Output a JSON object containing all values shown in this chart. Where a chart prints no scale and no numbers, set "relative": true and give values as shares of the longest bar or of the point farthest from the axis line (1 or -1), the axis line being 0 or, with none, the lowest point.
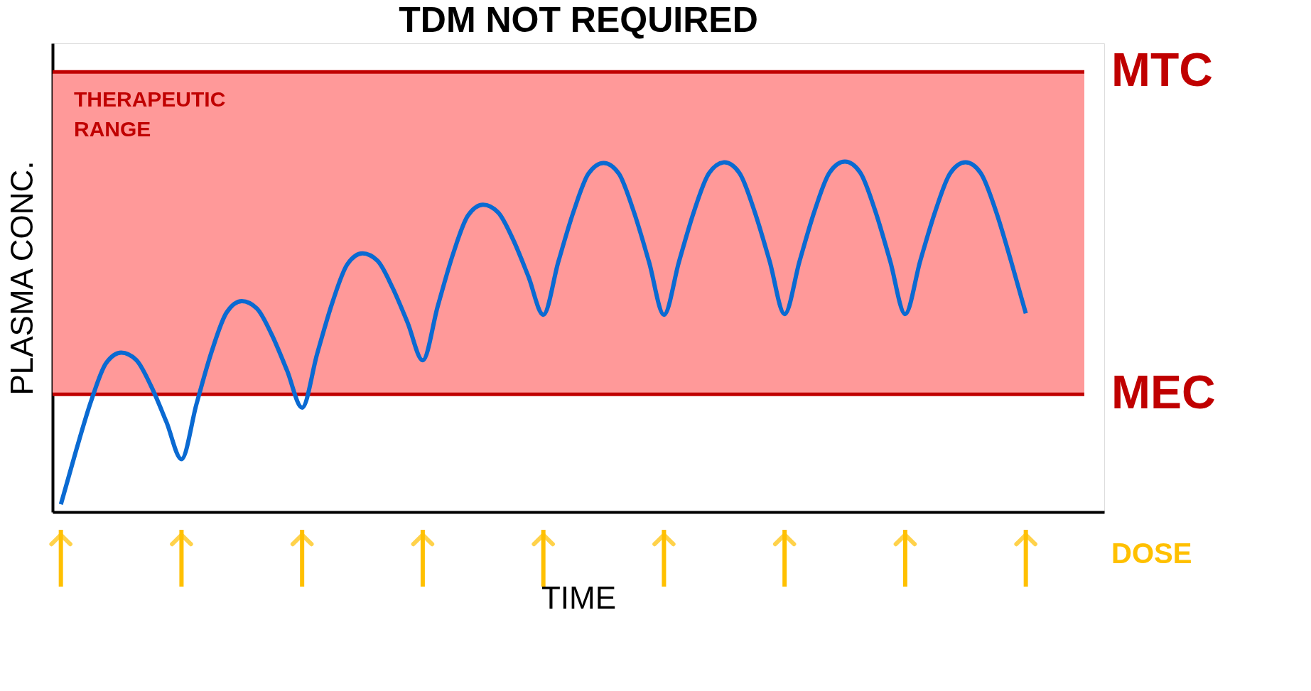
{
  "chart_data": {
    "type": "line",
    "title": "TDM NOT REQUIRED",
    "xlabel": "TIME",
    "ylabel": "PLASMA CONC.",
    "relative": true,
    "grid": false,
    "marker": "none",
    "line_style": "solid",
    "categories": [
      null,
      null,
      null,
      null,
      null,
      null,
      null,
      null,
      null,
      null,
      null,
      null,
      null,
      null,
      null,
      null,
      null,
      null,
      null,
      null,
      null,
      null,
      null,
      null,
      null,
      null,
      null,
      null,
      null,
      null,
      null,
      null,
      null,
      null,
      null,
      null,
      null,
      null,
      null,
      null,
      null,
      null,
      null,
      null,
      null,
      null,
      null,
      null,
      null,
      null,
      null,
      null,
      null,
      null,
      null,
      null,
      null,
      null,
      null,
      null,
      null,
      null,
      null,
      null,
      null
    ],
    "series": [
      {
        "color": "#0a6ad2",
        "values": [
          0.022,
          0.174,
          0.316,
          0.425,
          0.455,
          0.434,
          0.358,
          0.257,
          0.151,
          0.309,
          0.458,
          0.57,
          0.602,
          0.581,
          0.505,
          0.404,
          0.298,
          0.452,
          0.597,
          0.707,
          0.738,
          0.717,
          0.64,
          0.54,
          0.433,
          0.588,
          0.735,
          0.846,
          0.877,
          0.855,
          0.777,
          0.673,
          0.563,
          0.715,
          0.857,
          0.966,
          0.996,
          0.966,
          0.857,
          0.715,
          0.563,
          0.715,
          0.859,
          0.968,
          0.998,
          0.968,
          0.859,
          0.717,
          0.565,
          0.717,
          0.861,
          0.97,
          1.0,
          0.97,
          0.861,
          0.717,
          0.565,
          0.717,
          0.859,
          0.968,
          0.998,
          0.968,
          0.861,
          0.719,
          0.567
        ]
      }
    ],
    "bands": [
      {
        "axis": "y",
        "from": 0.336,
        "to": 1.256,
        "label": "THERAPEUTIC RANGE",
        "color": "#ff9999"
      }
    ],
    "ref_lines": [
      {
        "axis": "y",
        "value": 1.256,
        "label": "MTC",
        "color": "#c00000"
      },
      {
        "axis": "y",
        "value": 0.336,
        "label": "MEC",
        "color": "#c00000"
      }
    ],
    "annotations": [
      "DOSE"
    ]
  }
}
